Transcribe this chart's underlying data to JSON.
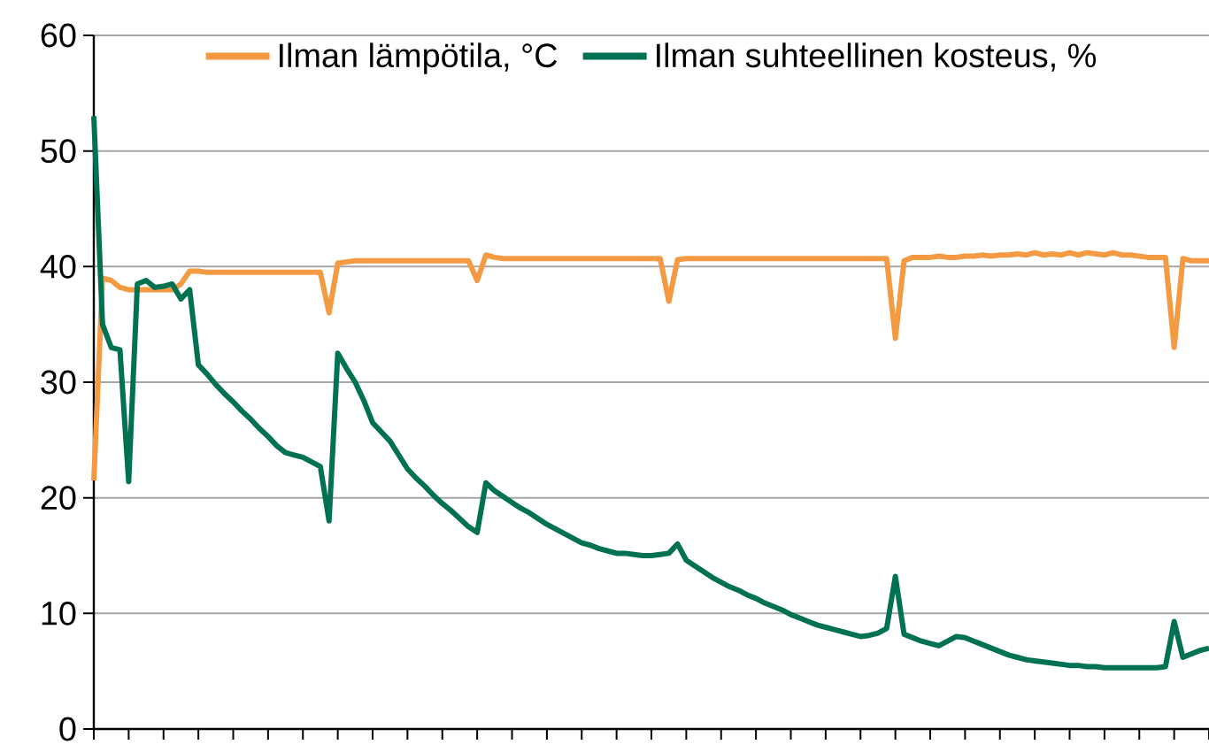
{
  "chart_data": {
    "type": "line",
    "ylim": [
      0,
      60
    ],
    "categories": [
      null,
      null,
      null,
      null,
      null,
      null,
      null,
      null,
      null,
      null,
      null,
      null,
      null,
      null,
      null,
      null,
      null,
      null,
      null,
      null,
      null,
      null,
      null,
      null,
      null,
      null,
      null,
      null,
      null,
      null,
      null,
      null,
      null,
      null,
      null,
      null,
      null,
      null,
      null,
      null,
      null,
      null,
      null,
      null,
      null,
      null,
      null,
      null,
      null,
      null,
      null,
      null,
      null,
      null,
      null,
      null,
      null,
      null,
      null,
      null,
      null,
      null,
      null,
      null,
      null,
      null,
      null,
      null,
      null,
      null,
      null,
      null,
      null,
      null,
      null,
      null,
      null,
      null,
      null,
      null,
      null,
      null,
      null,
      null,
      null,
      null,
      null,
      null,
      null,
      null,
      null,
      null,
      null,
      null,
      null,
      null,
      null,
      null,
      null,
      null,
      null,
      null,
      null,
      null,
      null,
      null,
      null,
      null,
      null,
      null,
      null,
      null,
      null,
      null,
      null,
      null,
      null,
      null,
      null,
      null,
      null,
      null,
      null,
      null,
      null,
      null,
      null,
      null,
      null
    ],
    "yticks": [
      0,
      10,
      20,
      30,
      40,
      50,
      60
    ],
    "tick_labels": "y",
    "grid": "y",
    "legend": "top",
    "marker": "none",
    "line_style": "solid",
    "series": [
      {
        "name": "Ilman lämpötila, °C",
        "color": "#f39a43",
        "values": [
          21.5,
          39,
          38.8,
          38.2,
          38,
          38,
          38,
          38,
          38,
          38,
          38.5,
          39.6,
          39.6,
          39.5,
          39.5,
          39.5,
          39.5,
          39.5,
          39.5,
          39.5,
          39.5,
          39.5,
          39.5,
          39.5,
          39.5,
          39.5,
          39.5,
          36,
          40.3,
          40.4,
          40.5,
          40.5,
          40.5,
          40.5,
          40.5,
          40.5,
          40.5,
          40.5,
          40.5,
          40.5,
          40.5,
          40.5,
          40.5,
          40.5,
          38.8,
          41,
          40.8,
          40.7,
          40.7,
          40.7,
          40.7,
          40.7,
          40.7,
          40.7,
          40.7,
          40.7,
          40.7,
          40.7,
          40.7,
          40.7,
          40.7,
          40.7,
          40.7,
          40.7,
          40.7,
          40.7,
          37,
          40.6,
          40.7,
          40.7,
          40.7,
          40.7,
          40.7,
          40.7,
          40.7,
          40.7,
          40.7,
          40.7,
          40.7,
          40.7,
          40.7,
          40.7,
          40.7,
          40.7,
          40.7,
          40.7,
          40.7,
          40.7,
          40.7,
          40.7,
          40.7,
          40.7,
          33.8,
          40.5,
          40.8,
          40.8,
          40.8,
          40.9,
          40.8,
          40.8,
          40.9,
          40.9,
          41,
          40.9,
          41,
          41,
          41.1,
          41,
          41.2,
          41,
          41.1,
          41,
          41.2,
          41,
          41.2,
          41.1,
          41,
          41.2,
          41,
          41,
          40.9,
          40.8,
          40.8,
          40.8,
          33,
          40.7,
          40.5,
          40.5,
          40.5
        ]
      },
      {
        "name": "Ilman suhteellinen kosteus, %",
        "color": "#007252",
        "values": [
          53,
          35,
          33,
          32.8,
          21.4,
          38.5,
          38.8,
          38.2,
          38.3,
          38.5,
          37.2,
          38,
          31.5,
          30.7,
          29.8,
          29,
          28.3,
          27.5,
          26.8,
          26,
          25.3,
          24.5,
          23.9,
          23.7,
          23.5,
          23.1,
          22.7,
          18,
          32.5,
          31.2,
          30,
          28.4,
          26.5,
          25.7,
          24.9,
          23.7,
          22.5,
          21.7,
          21,
          20.2,
          19.5,
          18.9,
          18.2,
          17.5,
          17,
          21.3,
          20.6,
          20.1,
          19.6,
          19.1,
          18.7,
          18.2,
          17.7,
          17.3,
          16.9,
          16.5,
          16.1,
          15.9,
          15.6,
          15.4,
          15.2,
          15.2,
          15.1,
          15,
          15,
          15.1,
          15.2,
          16,
          14.6,
          14.1,
          13.6,
          13.1,
          12.7,
          12.3,
          12,
          11.6,
          11.3,
          10.9,
          10.6,
          10.3,
          9.9,
          9.6,
          9.3,
          9,
          8.8,
          8.6,
          8.4,
          8.2,
          8,
          8.1,
          8.3,
          8.7,
          13.2,
          8.2,
          7.9,
          7.6,
          7.4,
          7.2,
          7.6,
          8,
          7.9,
          7.6,
          7.3,
          7,
          6.7,
          6.4,
          6.2,
          6,
          5.9,
          5.8,
          5.7,
          5.6,
          5.5,
          5.5,
          5.4,
          5.4,
          5.3,
          5.3,
          5.3,
          5.3,
          5.3,
          5.3,
          5.3,
          5.4,
          9.3,
          6.2,
          6.5,
          6.8,
          7
        ]
      }
    ]
  }
}
